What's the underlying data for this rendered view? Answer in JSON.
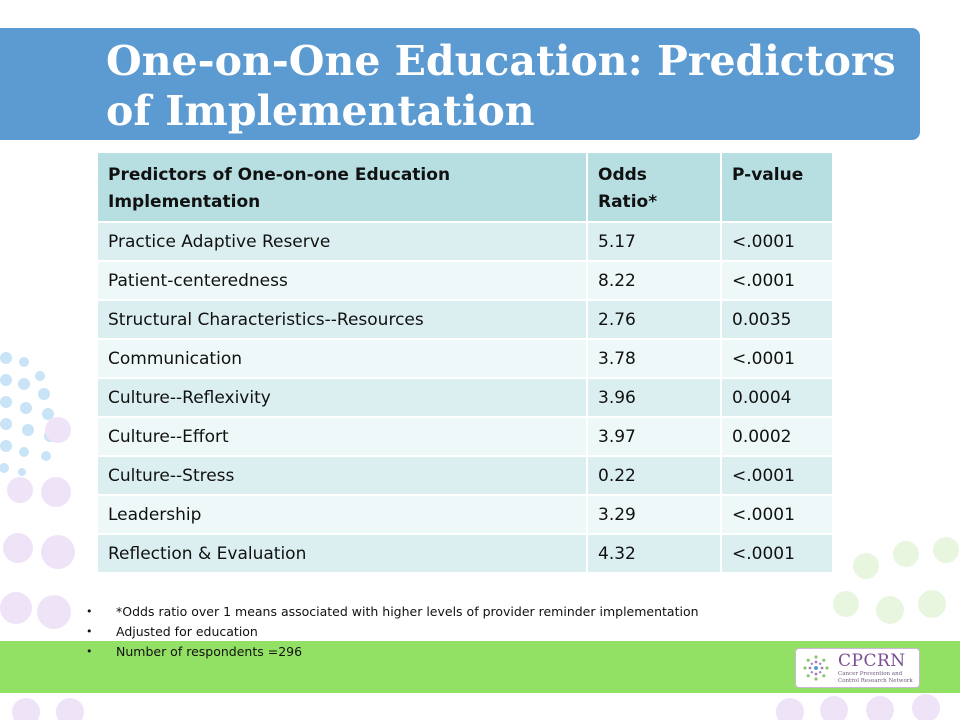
{
  "slide": {
    "title": "One-on-One Education: Predictors of Implementation"
  },
  "table": {
    "headers": [
      "Predictors of One-on-one Education Implementation",
      "Odds Ratio*",
      "P-value"
    ],
    "rows": [
      {
        "predictor": "Practice Adaptive Reserve",
        "odds_ratio": "5.17",
        "p_value": "<.0001"
      },
      {
        "predictor": "Patient-centeredness",
        "odds_ratio": "8.22",
        "p_value": "<.0001"
      },
      {
        "predictor": "Structural Characteristics--Resources",
        "odds_ratio": "2.76",
        "p_value": "0.0035"
      },
      {
        "predictor": "Communication",
        "odds_ratio": "3.78",
        "p_value": "<.0001"
      },
      {
        "predictor": "Culture--Reflexivity",
        "odds_ratio": "3.96",
        "p_value": "0.0004"
      },
      {
        "predictor": "Culture--Effort",
        "odds_ratio": "3.97",
        "p_value": "0.0002"
      },
      {
        "predictor": "Culture--Stress",
        "odds_ratio": "0.22",
        "p_value": "<.0001"
      },
      {
        "predictor": "Leadership",
        "odds_ratio": "3.29",
        "p_value": "<.0001"
      },
      {
        "predictor": "Reflection & Evaluation",
        "odds_ratio": "4.32",
        "p_value": "<.0001"
      }
    ]
  },
  "notes": [
    "*Odds ratio over 1 means associated with higher levels of provider reminder implementation",
    "Adjusted for education",
    "Number of respondents =296"
  ],
  "logo": {
    "name": "CPCRN",
    "subtitle": "Cancer Prevention and Control Research Network"
  },
  "colors": {
    "banner": "#5b9bd1",
    "header_row": "#b7dfe2",
    "row_a": "#dbeff0",
    "row_b": "#eef8f8",
    "band": "#92e165",
    "logo_accent": "#7a4d94"
  }
}
